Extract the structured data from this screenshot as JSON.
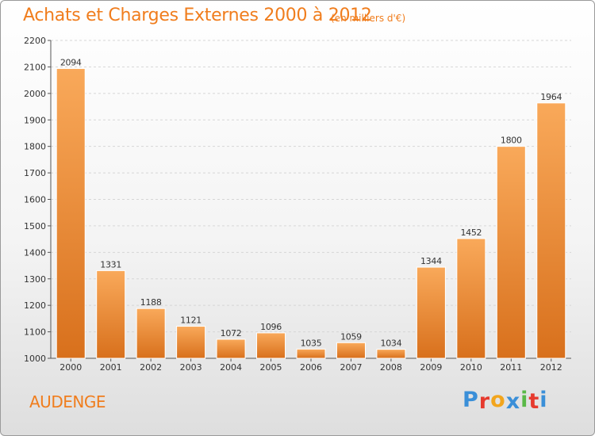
{
  "title": "Achats et Charges Externes 2000 à 2012",
  "subtitle": "(en milliers d'€)",
  "commune": "AUDENGE",
  "logo": {
    "letters": [
      "P",
      "r",
      "o",
      "x",
      "i",
      "t",
      "i"
    ],
    "colors": [
      "#3a8fd8",
      "#e63a2e",
      "#f2a51d",
      "#3a8fd8",
      "#5ab948",
      "#e63a2e",
      "#3a8fd8"
    ]
  },
  "colors": {
    "accent": "#f07d1d",
    "bar_light": "#f9a95a",
    "bar_dark": "#d8701c"
  },
  "chart_data": {
    "type": "bar",
    "title": "Achats et Charges Externes 2000 à 2012",
    "subtitle": "(en milliers d'€)",
    "categories": [
      "2000",
      "2001",
      "2002",
      "2003",
      "2004",
      "2005",
      "2006",
      "2007",
      "2008",
      "2009",
      "2010",
      "2011",
      "2012"
    ],
    "values": [
      2094,
      1331,
      1188,
      1121,
      1072,
      1096,
      1035,
      1059,
      1034,
      1344,
      1452,
      1800,
      1964
    ],
    "ylim": [
      1000,
      2200
    ],
    "yticks": [
      1000,
      1100,
      1200,
      1300,
      1400,
      1500,
      1600,
      1700,
      1800,
      1900,
      2000,
      2100,
      2200
    ],
    "grid": true,
    "xlabel": "",
    "ylabel": ""
  }
}
